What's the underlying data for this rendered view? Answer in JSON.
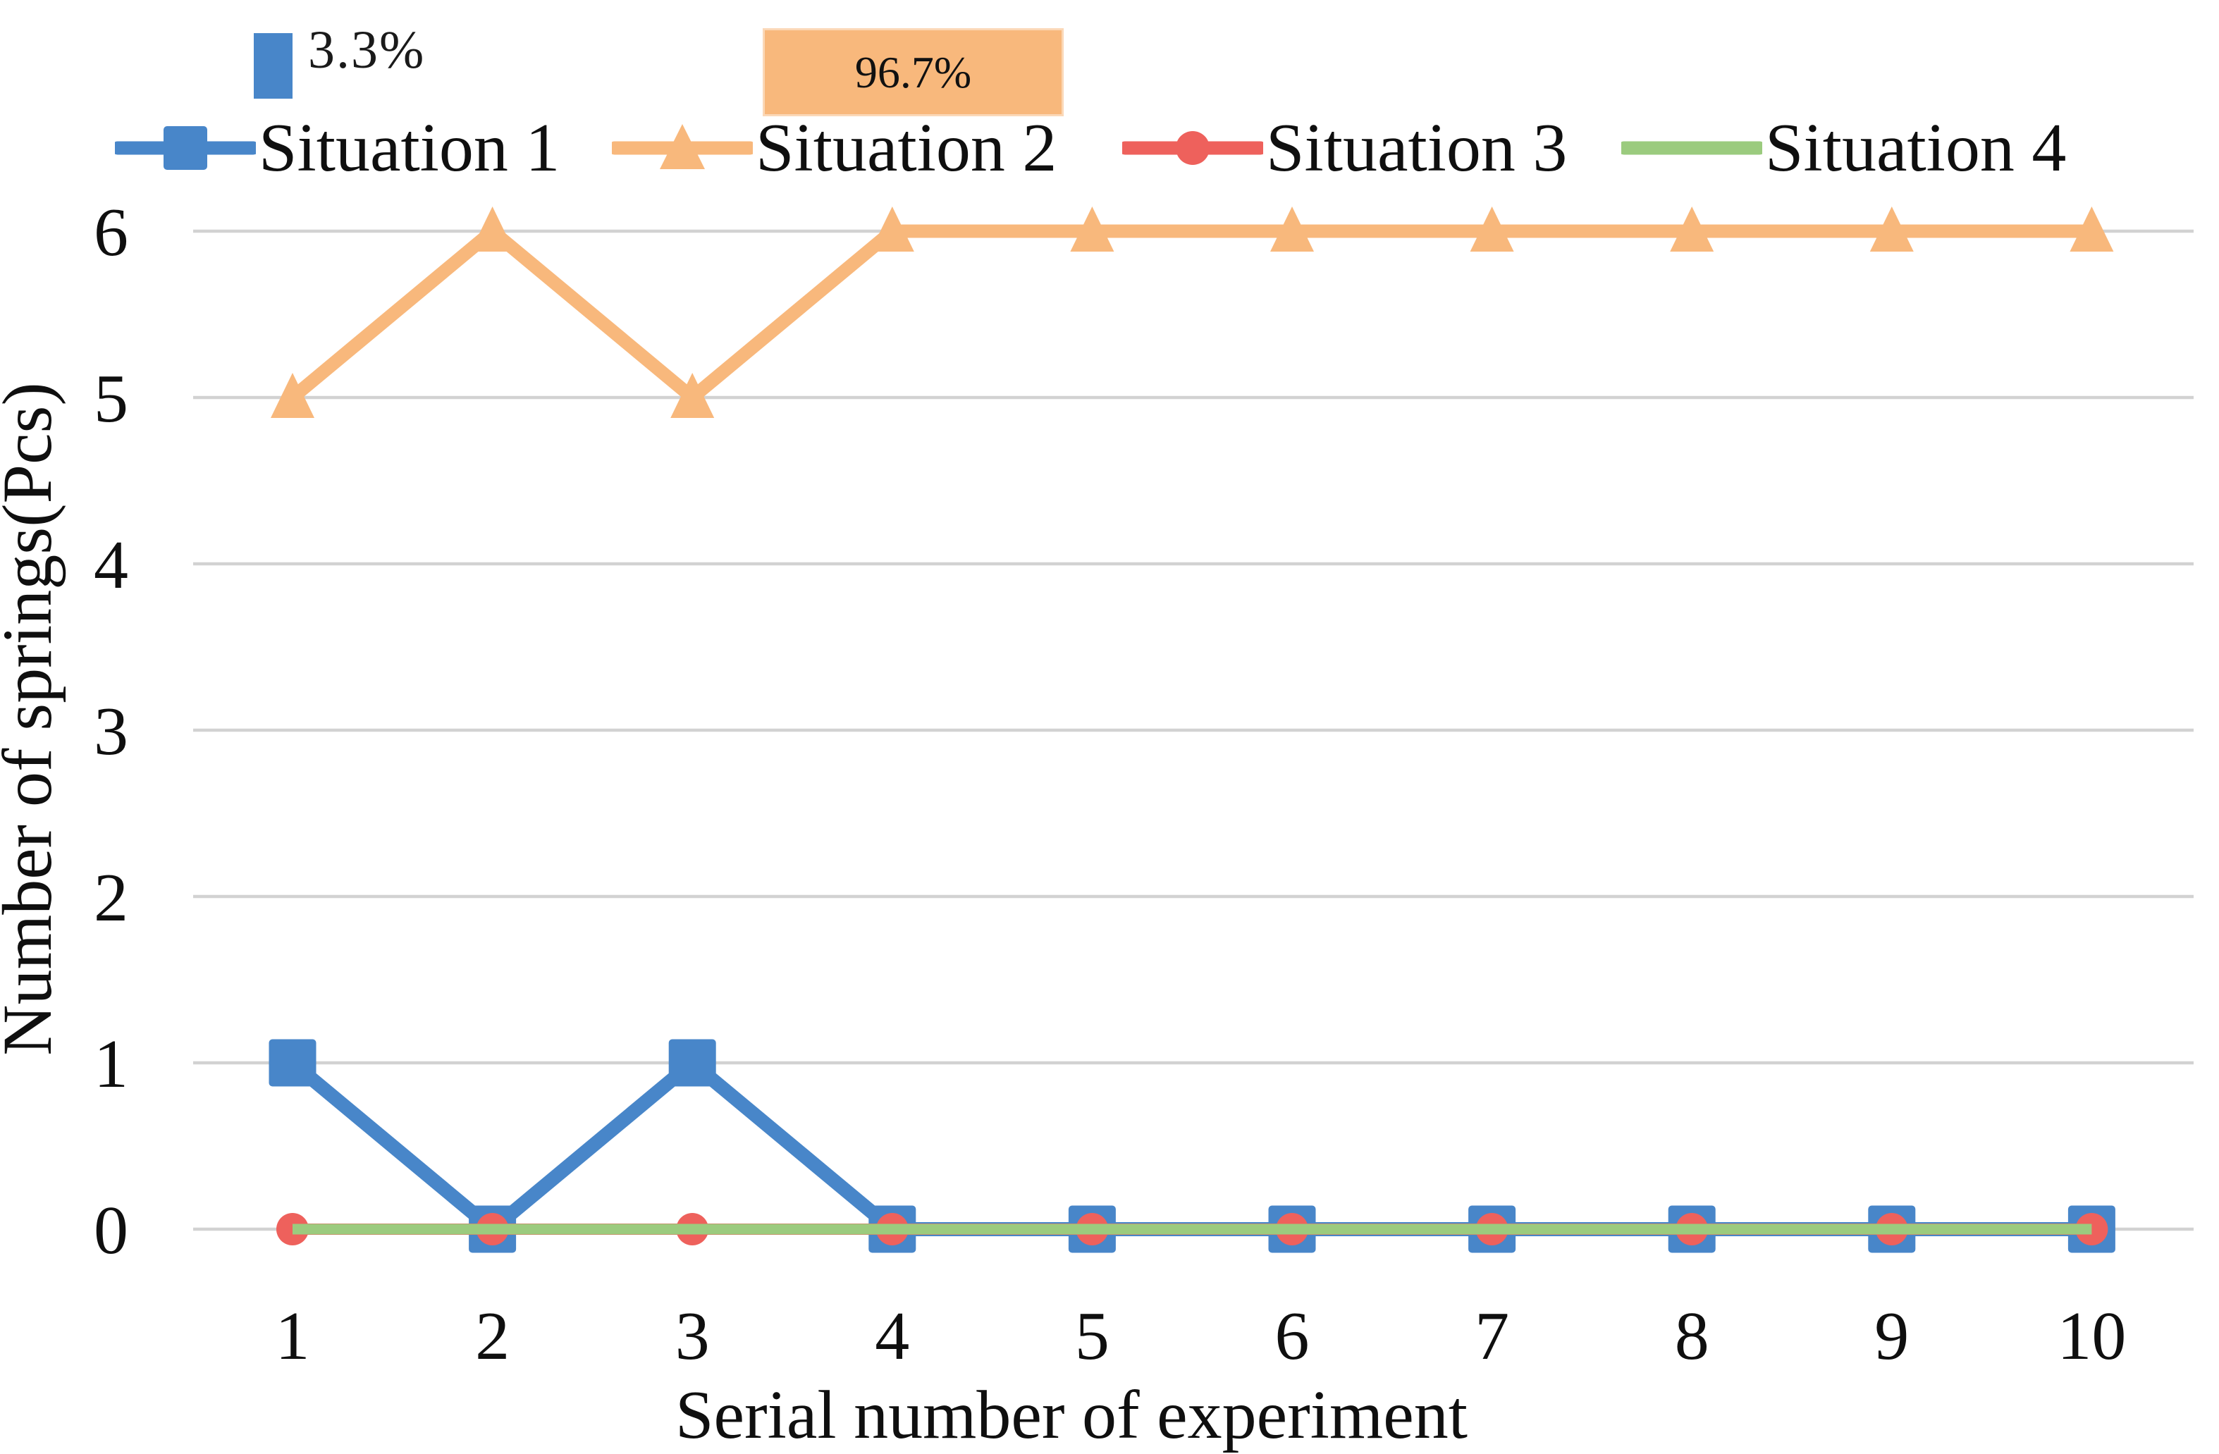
{
  "annotations": {
    "situation1_rate": {
      "label": "3.3%",
      "swatch_color": "#4886C9"
    },
    "situation2_rate": {
      "label": "96.7%",
      "box_color": "#F8B87C"
    }
  },
  "legend": [
    {
      "label": "Situation 1",
      "marker": "square",
      "color": "#4886C9"
    },
    {
      "label": "Situation 2",
      "marker": "triangle",
      "color": "#F8B87C"
    },
    {
      "label": "Situation 3",
      "marker": "circle",
      "color": "#EE615C"
    },
    {
      "label": "Situation 4",
      "marker": "none",
      "color": "#9BCB7E"
    }
  ],
  "chart_data": {
    "type": "line",
    "title": "",
    "x": [
      1,
      2,
      3,
      4,
      5,
      6,
      7,
      8,
      9,
      10
    ],
    "series": [
      {
        "name": "Situation 1",
        "values": [
          1,
          0,
          1,
          0,
          0,
          0,
          0,
          0,
          0,
          0
        ],
        "color": "#4886C9",
        "marker": "square"
      },
      {
        "name": "Situation 2",
        "values": [
          5,
          6,
          5,
          6,
          6,
          6,
          6,
          6,
          6,
          6
        ],
        "color": "#F8B87C",
        "marker": "triangle"
      },
      {
        "name": "Situation 3",
        "values": [
          0,
          0,
          0,
          0,
          0,
          0,
          0,
          0,
          0,
          0
        ],
        "color": "#EE615C",
        "marker": "circle"
      },
      {
        "name": "Situation 4",
        "values": [
          0,
          0,
          0,
          0,
          0,
          0,
          0,
          0,
          0,
          0
        ],
        "color": "#9BCB7E",
        "marker": "none"
      }
    ],
    "xlabel": "Serial number of experiment",
    "ylabel": "Number of springs(Pcs)",
    "ylim": [
      0,
      6
    ],
    "yticks": [
      0,
      1,
      2,
      3,
      4,
      5,
      6
    ],
    "grid": true,
    "gridline_color": "#D2D2D2",
    "legend_position": "top"
  }
}
